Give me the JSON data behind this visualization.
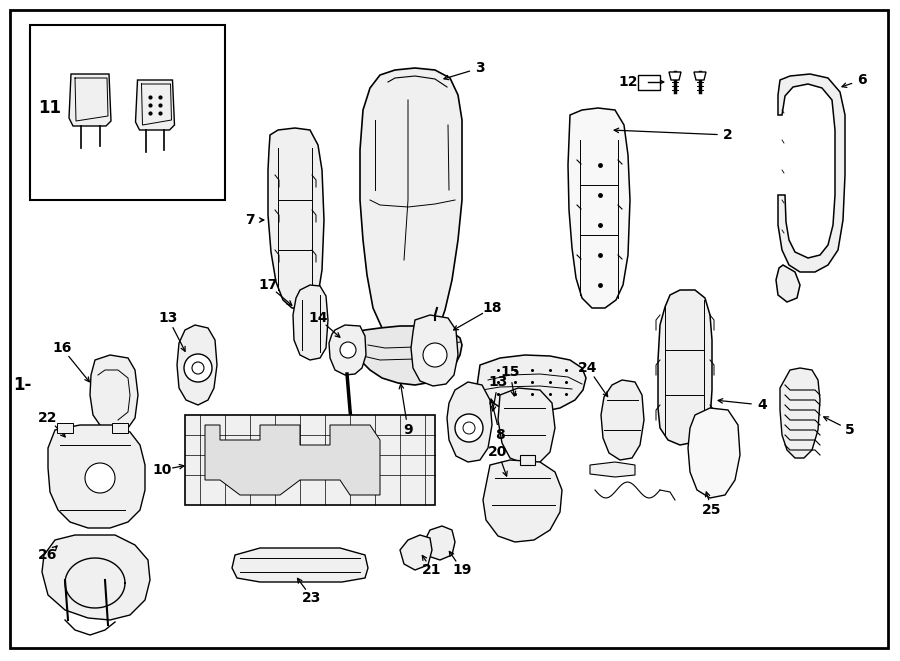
{
  "bg_color": "#ffffff",
  "lc": "#000000",
  "fig_width": 9.0,
  "fig_height": 6.61,
  "dpi": 100,
  "fs": 10,
  "fw": "bold"
}
